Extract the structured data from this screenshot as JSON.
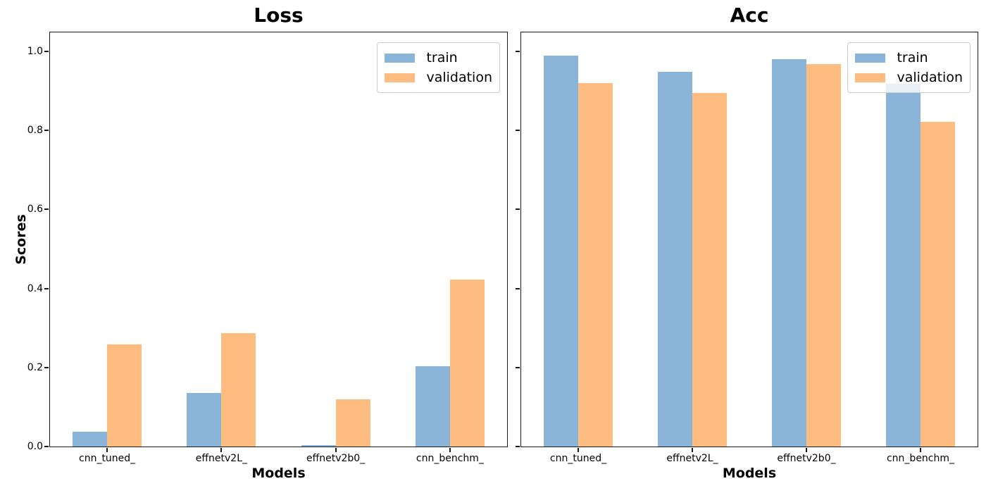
{
  "figure": {
    "background": "#ffffff",
    "spine_color": "#1a1a1a",
    "text_color": "#000000"
  },
  "chart_data": [
    {
      "type": "bar",
      "title": "Loss",
      "xlabel": "Models",
      "ylabel": "Scores",
      "categories": [
        "cnn_tuned_",
        "effnetv2L_",
        "effnetv2b0_",
        "cnn_benchm_"
      ],
      "series": [
        {
          "name": "train",
          "color": "#8AB5D8",
          "values": [
            0.037,
            0.135,
            0.003,
            0.203
          ]
        },
        {
          "name": "validation",
          "color": "#FFBC81",
          "values": [
            0.259,
            0.287,
            0.12,
            0.423
          ]
        }
      ],
      "ylim": [
        0,
        1.048
      ],
      "yticks": [
        "0.0",
        "0.2",
        "0.4",
        "0.6",
        "0.8",
        "1.0"
      ],
      "show_ytick_labels": true,
      "show_ylabel": true,
      "grid": false,
      "legend": {
        "entries": [
          "train",
          "validation"
        ],
        "position": "upper right"
      }
    },
    {
      "type": "bar",
      "title": "Acc",
      "xlabel": "Models",
      "ylabel": "",
      "categories": [
        "cnn_tuned_",
        "effnetv2L_",
        "effnetv2b0_",
        "cnn_benchm_"
      ],
      "series": [
        {
          "name": "train",
          "color": "#8AB5D8",
          "values": [
            0.989,
            0.949,
            0.981,
            0.918
          ]
        },
        {
          "name": "validation",
          "color": "#FFBC81",
          "values": [
            0.92,
            0.894,
            0.968,
            0.822
          ]
        }
      ],
      "ylim": [
        0,
        1.048
      ],
      "yticks": [
        "0.0",
        "0.2",
        "0.4",
        "0.6",
        "0.8",
        "1.0"
      ],
      "show_ytick_labels": false,
      "show_ylabel": false,
      "grid": false,
      "legend": {
        "entries": [
          "train",
          "validation"
        ],
        "position": "upper right"
      }
    }
  ]
}
